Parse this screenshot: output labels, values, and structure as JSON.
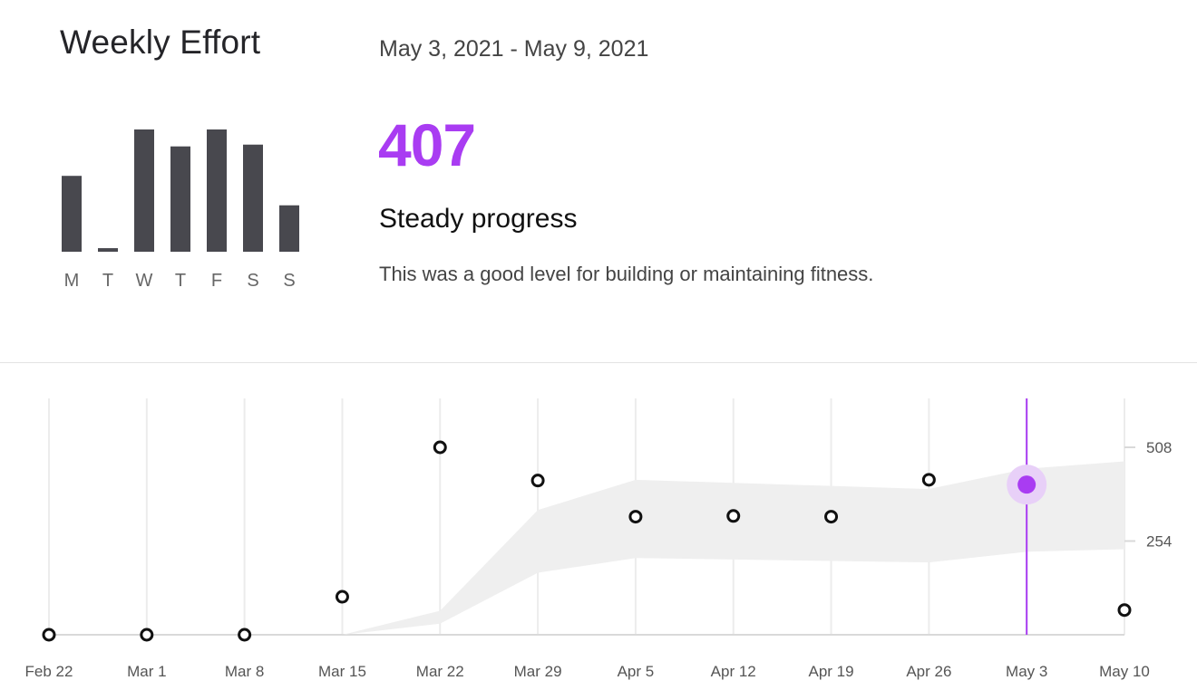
{
  "header": {
    "title": "Weekly Effort",
    "date_range": "May 3, 2021 - May 9, 2021"
  },
  "summary": {
    "score": "407",
    "status": "Steady progress",
    "description": "This was a good level for building or maintaining fitness."
  },
  "colors": {
    "accent": "#a93cf2",
    "accent_halo": "#e8d0f8",
    "bar": "#48484e",
    "band": "#efefef",
    "grid": "#ececec",
    "axis": "#d9d9d9"
  },
  "chart_data": [
    {
      "type": "bar",
      "categories": [
        "M",
        "T",
        "W",
        "T",
        "F",
        "S",
        "S"
      ],
      "values": [
        85,
        4,
        137,
        118,
        137,
        120,
        52
      ],
      "ylim": [
        0,
        140
      ]
    },
    {
      "type": "scatter",
      "x": [
        "Feb 22",
        "Mar 1",
        "Mar 8",
        "Mar 15",
        "Mar 22",
        "Mar 29",
        "Apr 5",
        "Apr 12",
        "Apr 19",
        "Apr 26",
        "May 3",
        "May 10"
      ],
      "values": [
        0,
        0,
        0,
        103,
        508,
        418,
        320,
        322,
        320,
        420,
        407,
        67
      ],
      "selected": "May 3",
      "band": {
        "upper": [
          0,
          0,
          0,
          0,
          65,
          338,
          420,
          null,
          null,
          395,
          450,
          470
        ],
        "lower": [
          0,
          0,
          0,
          0,
          30,
          168,
          208,
          null,
          null,
          196,
          225,
          232
        ]
      },
      "y_ticks": [
        254,
        508
      ],
      "ylim": [
        0,
        630
      ]
    }
  ]
}
